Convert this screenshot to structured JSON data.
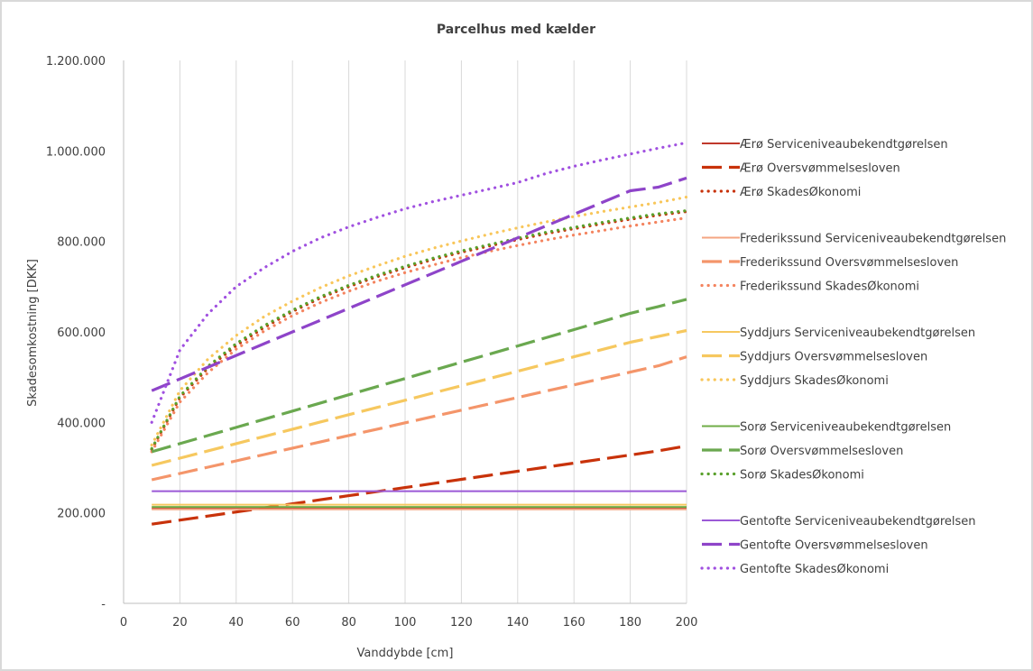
{
  "chart_data": {
    "type": "line",
    "title": "Parcelhus med kælder",
    "xlabel": "Vanddybde [cm]",
    "ylabel": "Skadesomkostning [DKK]",
    "xlim": [
      0,
      200
    ],
    "ylim": [
      0,
      1200000
    ],
    "x_ticks": [
      0,
      20,
      40,
      60,
      80,
      100,
      120,
      140,
      160,
      180,
      200
    ],
    "x_tick_labels": [
      "0",
      "20",
      "40",
      "60",
      "80",
      "100",
      "120",
      "140",
      "160",
      "180",
      "200"
    ],
    "y_ticks": [
      0,
      200000,
      400000,
      600000,
      800000,
      1000000,
      1200000
    ],
    "y_tick_labels": [
      "-",
      "200.000",
      "400.000",
      "600.000",
      "800.000",
      "1.000.000",
      "1.200.000"
    ],
    "grid": "vertical",
    "legend_position": "right",
    "x": [
      10,
      20,
      30,
      40,
      50,
      60,
      70,
      80,
      90,
      100,
      110,
      120,
      130,
      140,
      150,
      160,
      170,
      180,
      190,
      200
    ],
    "series": [
      {
        "name": "Ærø Serviceniveaubekendtgørelsen",
        "color": "#c0392b",
        "style": "solid",
        "values": [
          210000,
          210000,
          210000,
          210000,
          210000,
          210000,
          210000,
          210000,
          210000,
          210000,
          210000,
          210000,
          210000,
          210000,
          210000,
          210000,
          210000,
          210000,
          210000,
          210000
        ]
      },
      {
        "name": "Ærø Oversvømmelsesloven",
        "color": "#c8320a",
        "style": "dashed",
        "values": [
          175000,
          184000,
          193000,
          202000,
          211000,
          220000,
          229000,
          238000,
          247000,
          256000,
          265000,
          274000,
          283000,
          292000,
          301000,
          310000,
          319000,
          328000,
          337000,
          348000
        ]
      },
      {
        "name": "Ærø SkadesØkonomi",
        "color": "#c8320a",
        "style": "dotted",
        "values": [
          340000,
          455000,
          520000,
          570000,
          610000,
          645000,
          675000,
          700000,
          722000,
          742000,
          760000,
          776000,
          790000,
          804000,
          817000,
          828000,
          839000,
          849000,
          858000,
          866000
        ]
      },
      {
        "name": "Frederikssund Serviceniveaubekendtgørelsen",
        "color": "#f4a582",
        "style": "solid",
        "values": [
          208000,
          208000,
          208000,
          208000,
          208000,
          208000,
          208000,
          208000,
          208000,
          208000,
          208000,
          208000,
          208000,
          208000,
          208000,
          208000,
          208000,
          208000,
          208000,
          208000
        ]
      },
      {
        "name": "Frederikssund Oversvømmelsesloven",
        "color": "#f4956a",
        "style": "dashed",
        "values": [
          273000,
          287000,
          301000,
          315000,
          329000,
          343000,
          357000,
          371000,
          385000,
          399000,
          413000,
          427000,
          441000,
          455000,
          469000,
          483000,
          497000,
          511000,
          525000,
          545000
        ]
      },
      {
        "name": "Frederikssund SkadesØkonomi",
        "color": "#f4845f",
        "style": "dotted",
        "values": [
          335000,
          445000,
          510000,
          562000,
          602000,
          636000,
          665000,
          690000,
          712000,
          731000,
          748000,
          764000,
          778000,
          791000,
          803000,
          814000,
          824000,
          834000,
          843000,
          852000
        ]
      },
      {
        "name": "Syddjurs Serviceniveaubekendtgørelsen",
        "color": "#f6c85f",
        "style": "solid",
        "values": [
          218000,
          218000,
          218000,
          218000,
          218000,
          218000,
          218000,
          218000,
          218000,
          218000,
          218000,
          218000,
          218000,
          218000,
          218000,
          218000,
          218000,
          218000,
          218000,
          218000
        ]
      },
      {
        "name": "Syddjurs Oversvømmelsesloven",
        "color": "#f6c85f",
        "style": "dashed",
        "values": [
          305000,
          321000,
          337000,
          353000,
          369000,
          385000,
          401000,
          417000,
          433000,
          449000,
          465000,
          481000,
          497000,
          513000,
          529000,
          545000,
          561000,
          577000,
          590000,
          603000
        ]
      },
      {
        "name": "Syddjurs SkadesØkonomi",
        "color": "#f8c65a",
        "style": "dotted",
        "values": [
          350000,
          470000,
          540000,
          592000,
          634000,
          668000,
          698000,
          724000,
          746000,
          767000,
          785000,
          801000,
          816000,
          830000,
          843000,
          855000,
          866000,
          876000,
          886000,
          898000
        ]
      },
      {
        "name": "Sorø Serviceniveaubekendtgørelsen",
        "color": "#70ad47",
        "style": "solid",
        "values": [
          213000,
          213000,
          213000,
          213000,
          213000,
          213000,
          213000,
          213000,
          213000,
          213000,
          213000,
          213000,
          213000,
          213000,
          213000,
          213000,
          213000,
          213000,
          213000,
          213000
        ]
      },
      {
        "name": "Sorø Oversvømmelsesloven",
        "color": "#6aa84f",
        "style": "dashed",
        "values": [
          335000,
          353000,
          371000,
          389000,
          407000,
          425000,
          443000,
          461000,
          479000,
          497000,
          515000,
          533000,
          551000,
          569000,
          587000,
          605000,
          623000,
          641000,
          656000,
          672000
        ]
      },
      {
        "name": "Sorø SkadesØkonomi",
        "color": "#5aa02c",
        "style": "dotted",
        "values": [
          342000,
          458000,
          524000,
          574000,
          614000,
          648000,
          678000,
          703000,
          725000,
          745000,
          763000,
          779000,
          793000,
          807000,
          820000,
          831000,
          842000,
          852000,
          861000,
          868000
        ]
      },
      {
        "name": "Gentofte Serviceniveaubekendtgørelsen",
        "color": "#9b59d6",
        "style": "solid",
        "values": [
          248000,
          248000,
          248000,
          248000,
          248000,
          248000,
          248000,
          248000,
          248000,
          248000,
          248000,
          248000,
          248000,
          248000,
          248000,
          248000,
          248000,
          248000,
          248000,
          248000
        ]
      },
      {
        "name": "Gentofte Oversvømmelsesloven",
        "color": "#8e44c9",
        "style": "dashed",
        "values": [
          470000,
          496000,
          522000,
          548000,
          574000,
          600000,
          626000,
          652000,
          678000,
          704000,
          730000,
          756000,
          782000,
          808000,
          834000,
          860000,
          886000,
          912000,
          920000,
          940000
        ]
      },
      {
        "name": "Gentofte SkadesØkonomi",
        "color": "#a050e0",
        "style": "dotted",
        "values": [
          400000,
          560000,
          640000,
          700000,
          742000,
          778000,
          808000,
          832000,
          853000,
          872000,
          888000,
          902000,
          916000,
          930000,
          950000,
          966000,
          980000,
          993000,
          1006000,
          1018000
        ]
      }
    ]
  }
}
